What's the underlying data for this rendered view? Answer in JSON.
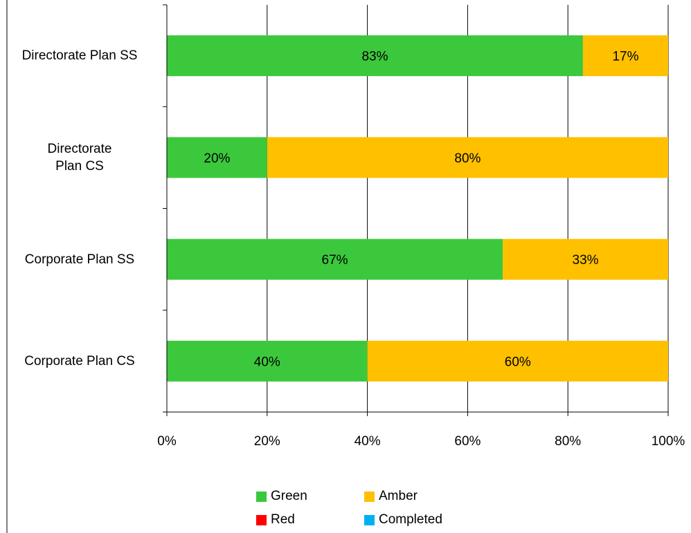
{
  "chart_data": {
    "type": "bar",
    "orientation": "horizontal",
    "stacked": true,
    "categories": [
      "Directorate Plan SS",
      "Directorate Plan CS",
      "Corporate Plan SS",
      "Corporate Plan CS"
    ],
    "series": [
      {
        "name": "Green",
        "color": "#3CC83C",
        "values": [
          83,
          20,
          67,
          40
        ],
        "labels": [
          "83%",
          "20%",
          "67%",
          "40%"
        ]
      },
      {
        "name": "Amber",
        "color": "#FFC000",
        "values": [
          17,
          80,
          33,
          60
        ],
        "labels": [
          "17%",
          "80%",
          "33%",
          "60%"
        ]
      },
      {
        "name": "Red",
        "color": "#FF0000",
        "values": [
          0,
          0,
          0,
          0
        ],
        "labels": [
          "",
          "",
          "",
          ""
        ]
      },
      {
        "name": "Completed",
        "color": "#00B0F0",
        "values": [
          0,
          0,
          0,
          0
        ],
        "labels": [
          "",
          "",
          "",
          ""
        ]
      }
    ],
    "xlim": [
      0,
      100
    ],
    "x_ticks": [
      0,
      20,
      40,
      60,
      80,
      100
    ],
    "x_tick_labels": [
      "0%",
      "20%",
      "40%",
      "60%",
      "80%",
      "100%"
    ],
    "grid": "vertical",
    "legend_position": "bottom",
    "title": "",
    "xlabel": "",
    "ylabel": ""
  }
}
